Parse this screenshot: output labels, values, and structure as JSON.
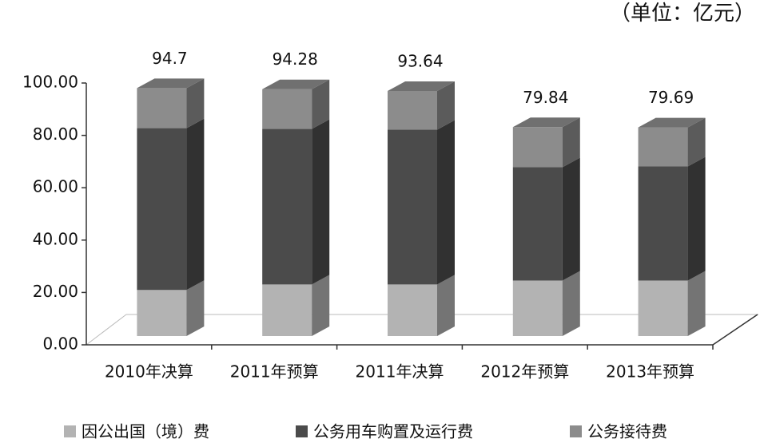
{
  "chart_data": {
    "type": "bar3d-stacked",
    "unit_note": "（单位：亿元）",
    "categories": [
      "2010年决算",
      "2011年预算",
      "2011年决算",
      "2012年预算",
      "2013年预算"
    ],
    "series": [
      {
        "name": "因公出国（境）费",
        "color": "#b3b3b3",
        "values": [
          17.6,
          19.7,
          19.7,
          21.2,
          21.2
        ]
      },
      {
        "name": "公务用车购置及运行费",
        "color": "#4b4b4b",
        "values": [
          61.8,
          59.4,
          59.1,
          43.3,
          43.6
        ]
      },
      {
        "name": "公务接待费",
        "color": "#8c8c8c",
        "values": [
          15.3,
          15.2,
          14.8,
          15.3,
          14.9
        ]
      }
    ],
    "totals": [
      94.7,
      94.28,
      93.64,
      79.84,
      79.69
    ],
    "ylim": [
      0,
      100
    ],
    "yticks": [
      {
        "value": 0,
        "label": "0.00"
      },
      {
        "value": 20,
        "label": "20.00"
      },
      {
        "value": 40,
        "label": "40.00"
      },
      {
        "value": 60,
        "label": "60.00"
      },
      {
        "value": 80,
        "label": "80.00"
      },
      {
        "value": 100,
        "label": "100.00"
      }
    ]
  }
}
